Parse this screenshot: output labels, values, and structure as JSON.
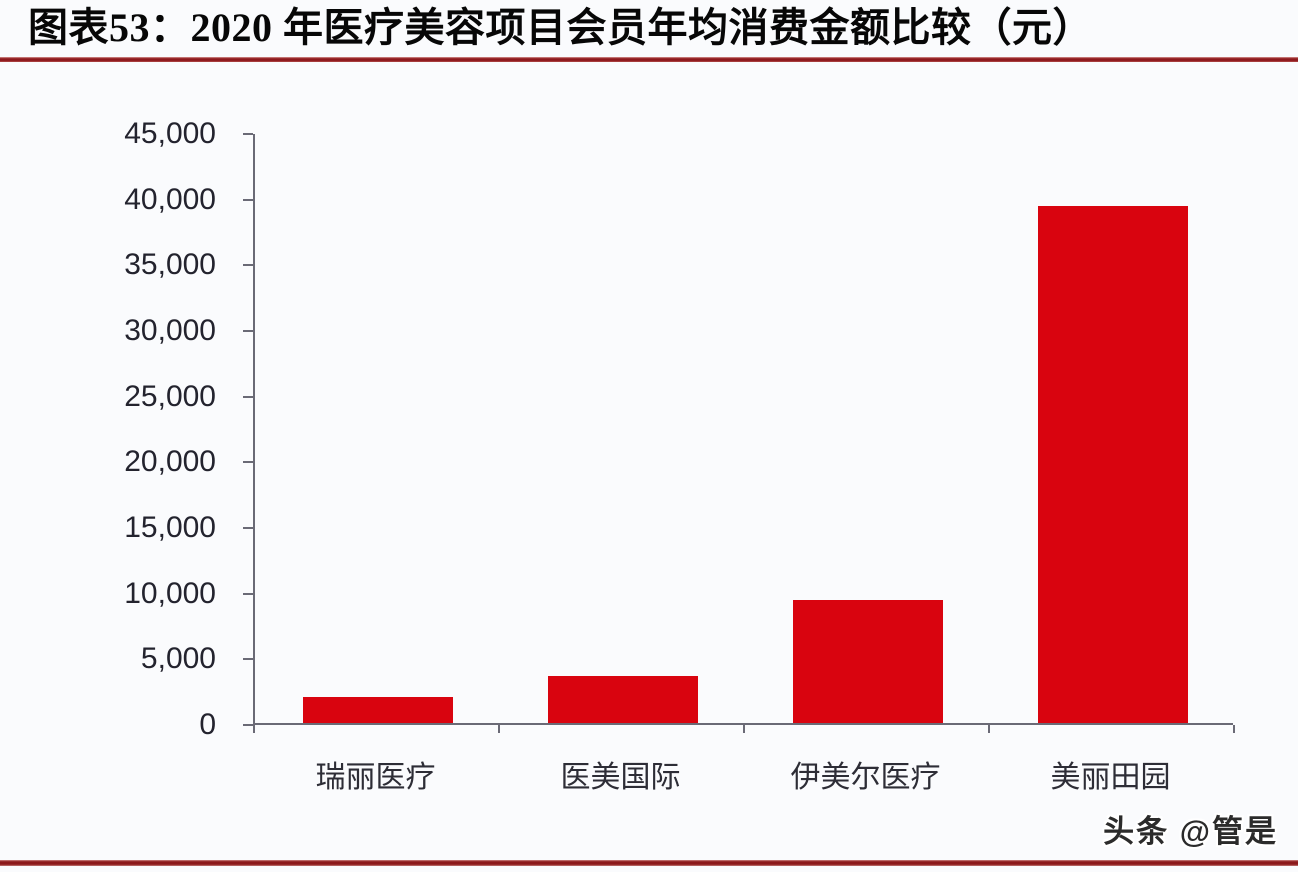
{
  "header": {
    "title": "图表53：2020 年医疗美容项目会员年均消费金额比较（元）"
  },
  "footer": {
    "watermark": "头条 @管是"
  },
  "chart_data": {
    "type": "bar",
    "title": "2020 年医疗美容项目会员年均消费金额比较（元）",
    "categories": [
      "瑞丽医疗",
      "医美国际",
      "伊美尔医疗",
      "美丽田园"
    ],
    "values": [
      2000,
      3600,
      9400,
      39400
    ],
    "xlabel": "",
    "ylabel": "",
    "ylim": [
      0,
      45000
    ],
    "ytick_step": 5000,
    "ytick_labels": [
      "0",
      "5,000",
      "10,000",
      "15,000",
      "20,000",
      "25,000",
      "30,000",
      "35,000",
      "40,000",
      "45,000"
    ],
    "bar_color": "#d9040f",
    "axis_color": "#6a6a76",
    "grid": false,
    "legend_position": null
  }
}
